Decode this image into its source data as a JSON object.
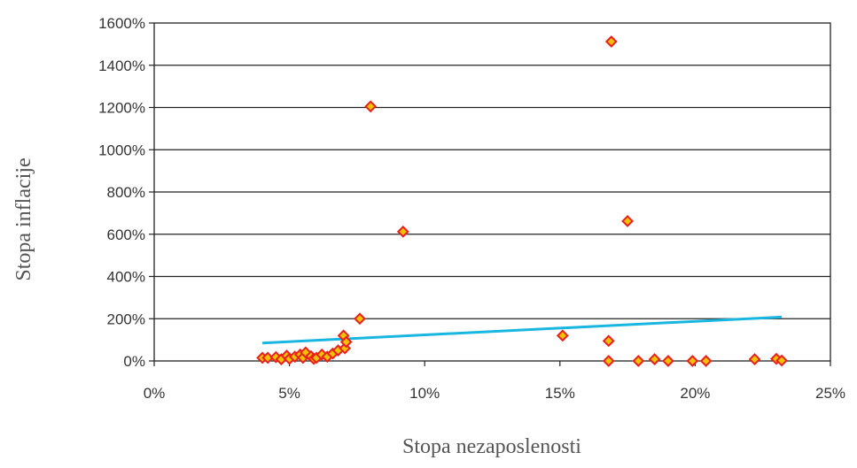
{
  "chart_data": {
    "type": "scatter",
    "title": "",
    "xlabel": "Stopa nezaposlenosti",
    "ylabel": "Stopa inflacije",
    "xlim": [
      0,
      25
    ],
    "ylim": [
      0,
      1600
    ],
    "x_ticks": [
      0,
      5,
      10,
      15,
      20,
      25
    ],
    "y_ticks": [
      0,
      200,
      400,
      600,
      800,
      1000,
      1200,
      1400,
      1600
    ],
    "x_tick_labels": [
      "0%",
      "5%",
      "10%",
      "15%",
      "20%",
      "25%"
    ],
    "y_tick_labels": [
      "0%",
      "200%",
      "400%",
      "600%",
      "800%",
      "1000%",
      "1200%",
      "1400%",
      "1600%"
    ],
    "grid": "horizontal",
    "legend": "none",
    "marker_fill": "#f2c200",
    "marker_edge": "#e8201c",
    "trendline_color": "#19b6e0",
    "series": [
      {
        "points": [
          [
            4.0,
            15
          ],
          [
            4.2,
            15
          ],
          [
            4.5,
            18
          ],
          [
            4.7,
            8
          ],
          [
            4.9,
            25
          ],
          [
            5.0,
            10
          ],
          [
            5.2,
            20
          ],
          [
            5.4,
            30
          ],
          [
            5.5,
            15
          ],
          [
            5.6,
            40
          ],
          [
            5.8,
            22
          ],
          [
            5.9,
            10
          ],
          [
            6.0,
            15
          ],
          [
            6.2,
            30
          ],
          [
            6.4,
            20
          ],
          [
            6.6,
            35
          ],
          [
            6.8,
            50
          ],
          [
            7.0,
            120
          ],
          [
            7.05,
            60
          ],
          [
            7.1,
            90
          ],
          [
            7.6,
            200
          ],
          [
            8.0,
            1205
          ],
          [
            9.2,
            612
          ],
          [
            15.1,
            120
          ],
          [
            16.8,
            95
          ],
          [
            16.8,
            0
          ],
          [
            16.9,
            1512
          ],
          [
            17.5,
            662
          ],
          [
            17.9,
            0
          ],
          [
            18.5,
            8
          ],
          [
            19.0,
            0
          ],
          [
            19.9,
            0
          ],
          [
            20.4,
            0
          ],
          [
            22.2,
            8
          ],
          [
            23.0,
            10
          ],
          [
            23.2,
            2
          ]
        ]
      }
    ],
    "trendline": {
      "x": [
        4.0,
        23.2
      ],
      "y": [
        85,
        208
      ]
    }
  }
}
